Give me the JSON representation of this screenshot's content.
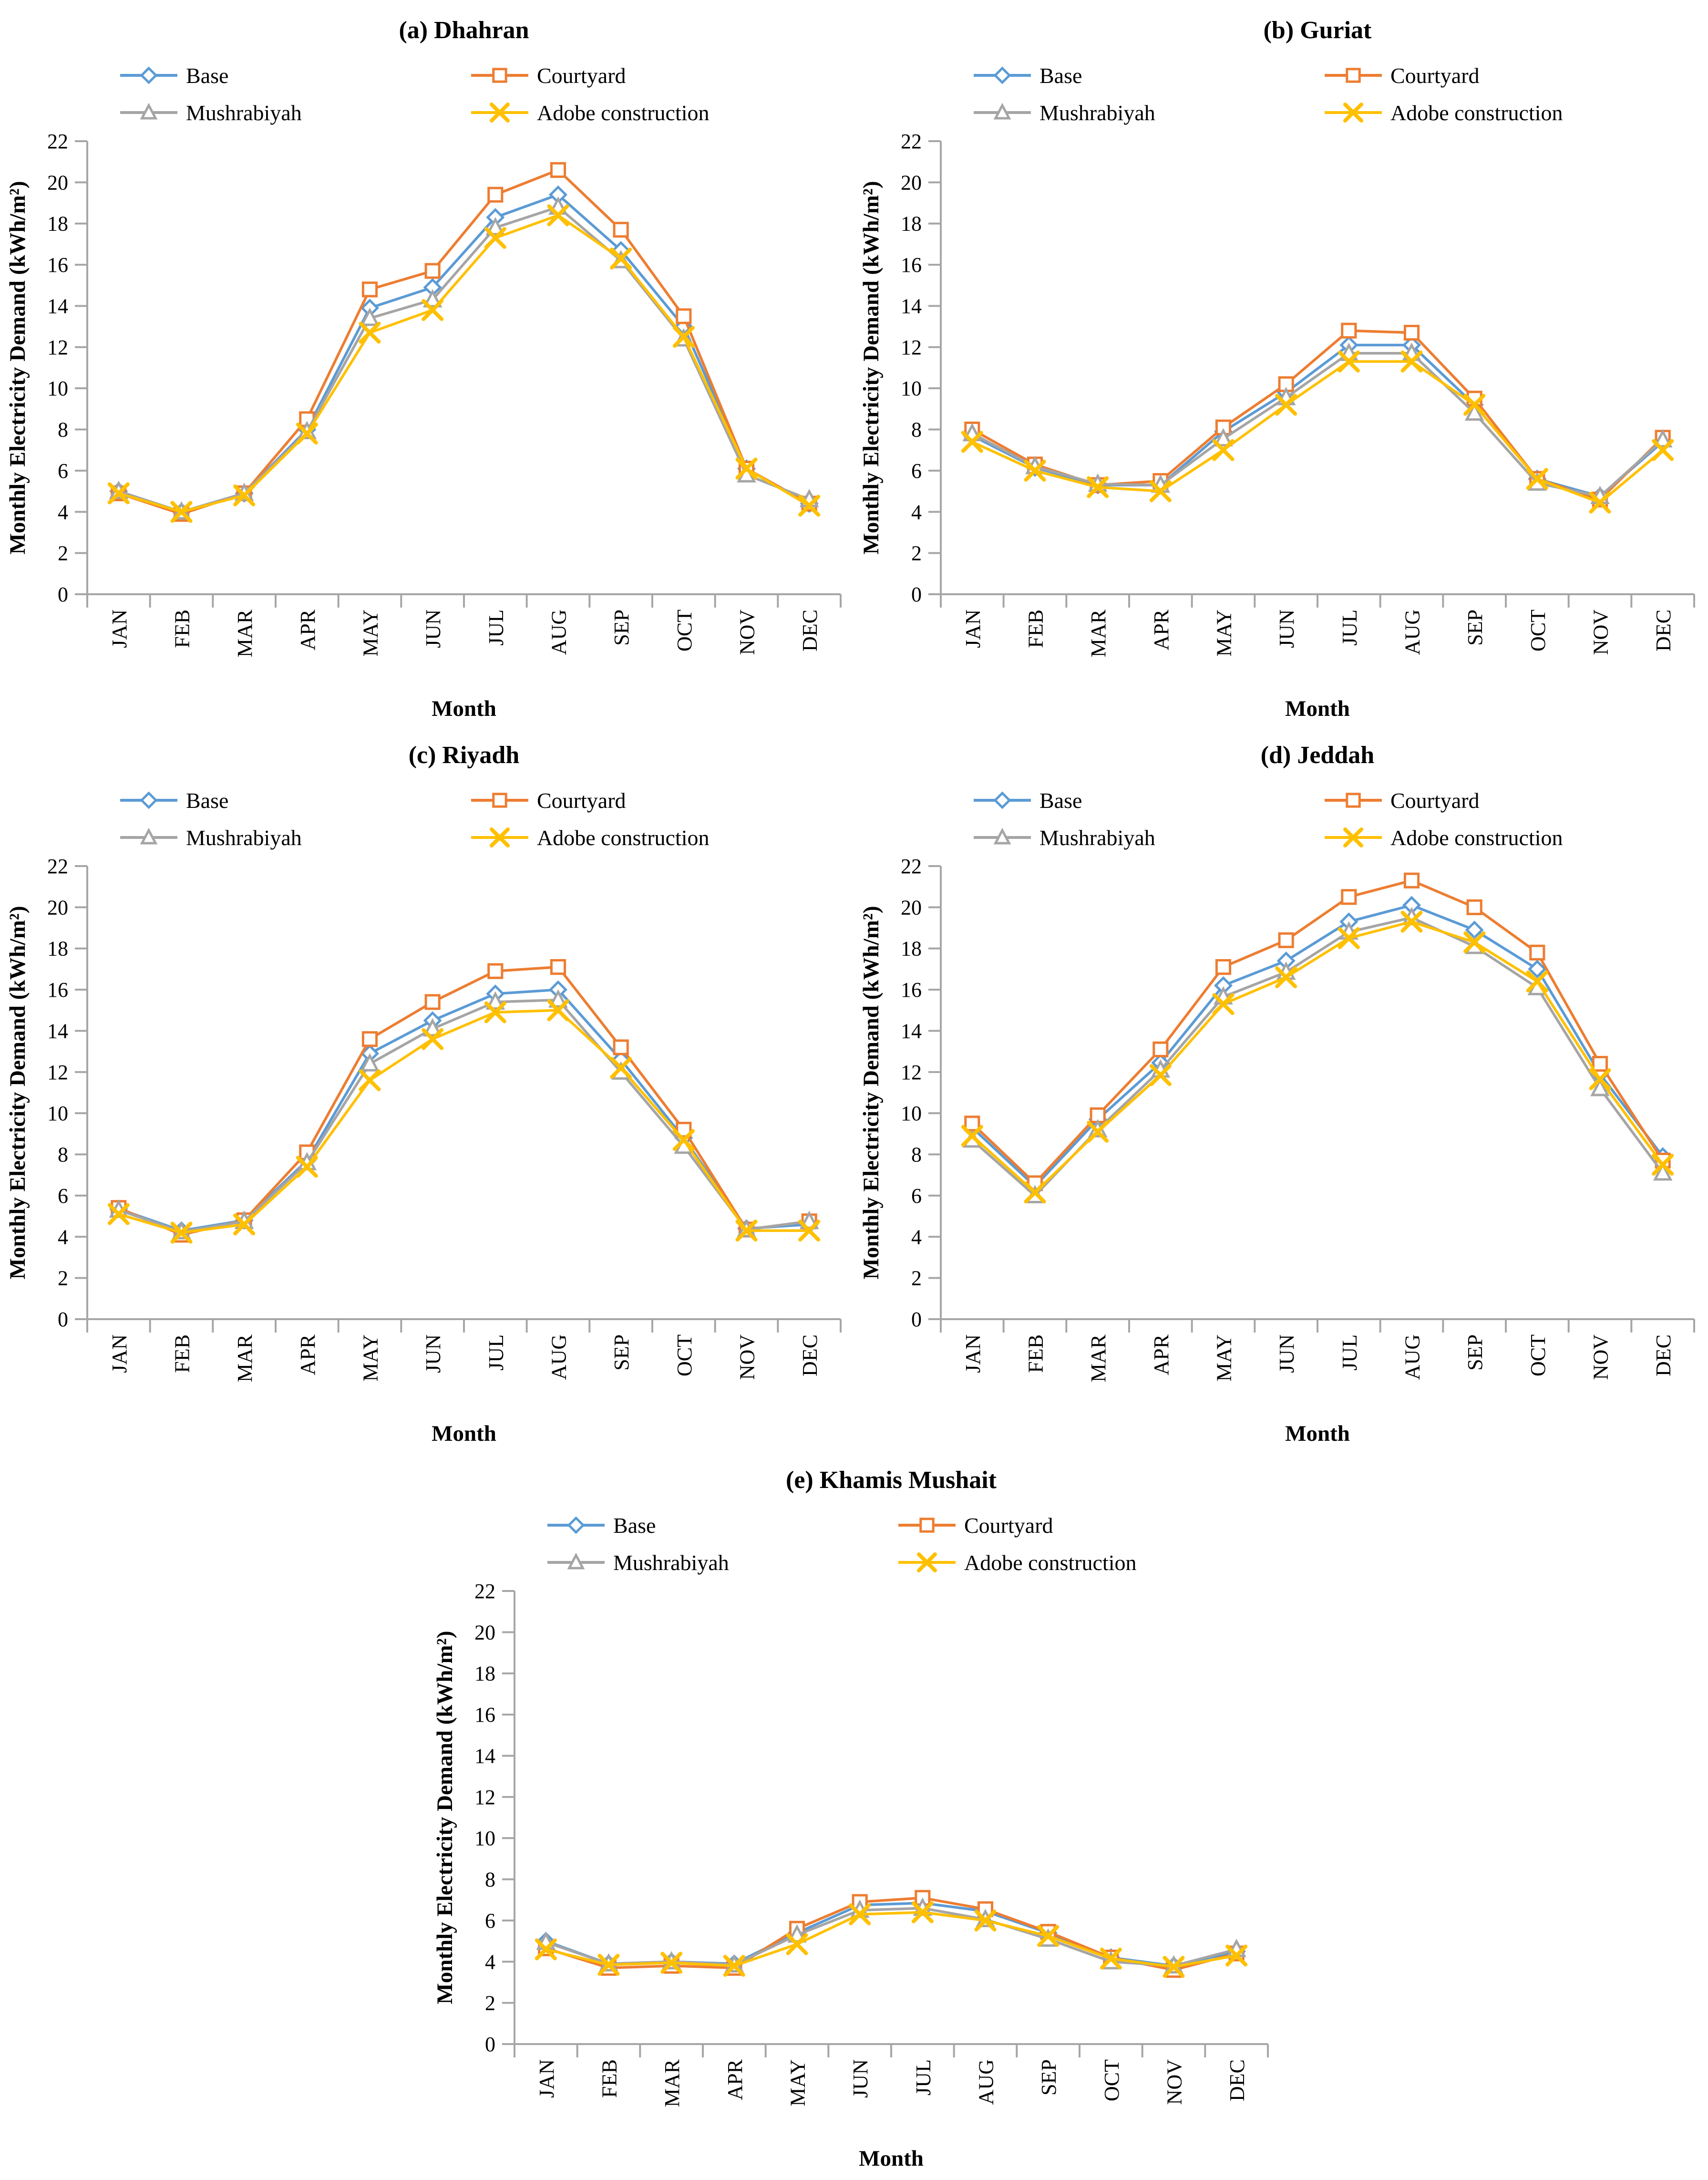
{
  "figure": {
    "ylabel": "Monthly Electricity Demand (kWh/m²)",
    "xlabel": "Month",
    "months": [
      "JAN",
      "FEB",
      "MAR",
      "APR",
      "MAY",
      "JUN",
      "JUL",
      "AUG",
      "SEP",
      "OCT",
      "NOV",
      "DEC"
    ],
    "y_axis": {
      "min": 0,
      "max": 22,
      "step": 2
    },
    "axis_color": "#A6A6A6",
    "text_color": "#000000",
    "series_meta": [
      {
        "name": "Base",
        "color": "#5B9BD5",
        "marker": "diamond"
      },
      {
        "name": "Courtyard",
        "color": "#ED7D31",
        "marker": "square"
      },
      {
        "name": "Mushrabiyah",
        "color": "#A5A5A5",
        "marker": "triangle"
      },
      {
        "name": "Adobe construction",
        "color": "#FFC000",
        "marker": "x"
      }
    ]
  },
  "chart_data": [
    {
      "type": "line",
      "title": "(a) Dhahran",
      "categories": [
        "JAN",
        "FEB",
        "MAR",
        "APR",
        "MAY",
        "JUN",
        "JUL",
        "AUG",
        "SEP",
        "OCT",
        "NOV",
        "DEC"
      ],
      "ylim": [
        0,
        22
      ],
      "ytick_step": 2,
      "grid": false,
      "legend_position": "top",
      "series": [
        {
          "name": "Base",
          "values": [
            5.0,
            4.0,
            4.9,
            8.0,
            13.9,
            14.9,
            18.3,
            19.4,
            16.7,
            13.0,
            6.1,
            4.4
          ]
        },
        {
          "name": "Courtyard",
          "values": [
            4.9,
            3.9,
            4.9,
            8.5,
            14.8,
            15.7,
            19.4,
            20.6,
            17.7,
            13.5,
            6.1,
            4.4
          ]
        },
        {
          "name": "Mushrabiyah",
          "values": [
            5.0,
            4.0,
            4.9,
            7.9,
            13.4,
            14.3,
            17.8,
            18.8,
            16.2,
            12.4,
            5.8,
            4.6
          ]
        },
        {
          "name": "Adobe construction",
          "values": [
            4.9,
            4.0,
            4.8,
            7.8,
            12.7,
            13.8,
            17.3,
            18.4,
            16.3,
            12.5,
            6.1,
            4.3
          ]
        }
      ]
    },
    {
      "type": "line",
      "title": "(b) Guriat",
      "categories": [
        "JAN",
        "FEB",
        "MAR",
        "APR",
        "MAY",
        "JUN",
        "JUL",
        "AUG",
        "SEP",
        "OCT",
        "NOV",
        "DEC"
      ],
      "ylim": [
        0,
        22
      ],
      "ytick_step": 2,
      "grid": false,
      "legend_position": "top",
      "series": [
        {
          "name": "Base",
          "values": [
            7.7,
            6.15,
            5.3,
            5.3,
            7.9,
            9.8,
            12.1,
            12.1,
            9.2,
            5.6,
            4.75,
            7.4
          ]
        },
        {
          "name": "Courtyard",
          "values": [
            8.0,
            6.3,
            5.3,
            5.5,
            8.1,
            10.2,
            12.8,
            12.7,
            9.5,
            5.6,
            4.6,
            7.6
          ]
        },
        {
          "name": "Mushrabiyah",
          "values": [
            7.8,
            6.2,
            5.35,
            5.3,
            7.55,
            9.55,
            11.7,
            11.7,
            8.8,
            5.4,
            4.75,
            7.5
          ]
        },
        {
          "name": "Adobe construction",
          "values": [
            7.4,
            6.0,
            5.2,
            5.0,
            7.0,
            9.2,
            11.3,
            11.3,
            9.2,
            5.6,
            4.45,
            7.0
          ]
        }
      ]
    },
    {
      "type": "line",
      "title": "(c) Riyadh",
      "categories": [
        "JAN",
        "FEB",
        "MAR",
        "APR",
        "MAY",
        "JUN",
        "JUL",
        "AUG",
        "SEP",
        "OCT",
        "NOV",
        "DEC"
      ],
      "ylim": [
        0,
        22
      ],
      "ytick_step": 2,
      "grid": false,
      "legend_position": "top",
      "series": [
        {
          "name": "Base",
          "values": [
            5.35,
            4.3,
            4.8,
            7.7,
            12.9,
            14.5,
            15.8,
            16.0,
            12.6,
            8.8,
            4.4,
            4.6
          ]
        },
        {
          "name": "Courtyard",
          "values": [
            5.4,
            4.1,
            4.8,
            8.1,
            13.6,
            15.4,
            16.9,
            17.1,
            13.2,
            9.2,
            4.35,
            4.75
          ]
        },
        {
          "name": "Mushrabiyah",
          "values": [
            5.3,
            4.25,
            4.75,
            7.6,
            12.4,
            14.1,
            15.4,
            15.5,
            12.0,
            8.4,
            4.35,
            4.75
          ]
        },
        {
          "name": "Adobe construction",
          "values": [
            5.1,
            4.2,
            4.6,
            7.4,
            11.6,
            13.6,
            14.9,
            15.0,
            12.2,
            8.7,
            4.3,
            4.3
          ]
        }
      ]
    },
    {
      "type": "line",
      "title": "(d) Jeddah",
      "categories": [
        "JAN",
        "FEB",
        "MAR",
        "APR",
        "MAY",
        "JUN",
        "JUL",
        "AUG",
        "SEP",
        "OCT",
        "NOV",
        "DEC"
      ],
      "ylim": [
        0,
        22
      ],
      "ytick_step": 2,
      "grid": false,
      "legend_position": "top",
      "series": [
        {
          "name": "Base",
          "values": [
            9.3,
            6.45,
            9.7,
            12.45,
            16.2,
            17.4,
            19.3,
            20.1,
            18.9,
            17.0,
            11.9,
            7.9
          ]
        },
        {
          "name": "Courtyard",
          "values": [
            9.5,
            6.6,
            9.9,
            13.1,
            17.1,
            18.4,
            20.5,
            21.3,
            20.0,
            17.8,
            12.4,
            7.7
          ]
        },
        {
          "name": "Mushrabiyah",
          "values": [
            8.7,
            6.0,
            9.2,
            12.1,
            15.65,
            16.85,
            18.8,
            19.5,
            18.1,
            16.1,
            11.2,
            7.1
          ]
        },
        {
          "name": "Adobe construction",
          "values": [
            8.9,
            6.15,
            9.1,
            11.85,
            15.3,
            16.6,
            18.5,
            19.3,
            18.3,
            16.4,
            11.65,
            7.5
          ]
        }
      ]
    },
    {
      "type": "line",
      "title": "(e) Khamis Mushait",
      "categories": [
        "JAN",
        "FEB",
        "MAR",
        "APR",
        "MAY",
        "JUN",
        "JUL",
        "AUG",
        "SEP",
        "OCT",
        "NOV",
        "DEC"
      ],
      "ylim": [
        0,
        22
      ],
      "ytick_step": 2,
      "grid": false,
      "legend_position": "top",
      "series": [
        {
          "name": "Base",
          "values": [
            5.0,
            3.9,
            4.0,
            3.9,
            5.4,
            6.75,
            6.85,
            6.45,
            5.4,
            4.2,
            3.8,
            4.5
          ]
        },
        {
          "name": "Courtyard",
          "values": [
            4.65,
            3.7,
            3.8,
            3.7,
            5.6,
            6.9,
            7.1,
            6.55,
            5.45,
            4.2,
            3.6,
            4.4
          ]
        },
        {
          "name": "Mushrabiyah",
          "values": [
            4.95,
            3.9,
            4.0,
            3.85,
            5.3,
            6.5,
            6.6,
            6.05,
            5.1,
            4.0,
            3.8,
            4.6
          ]
        },
        {
          "name": "Adobe construction",
          "values": [
            4.6,
            3.85,
            3.95,
            3.8,
            4.85,
            6.3,
            6.4,
            6.0,
            5.25,
            4.15,
            3.75,
            4.3
          ]
        }
      ]
    }
  ]
}
